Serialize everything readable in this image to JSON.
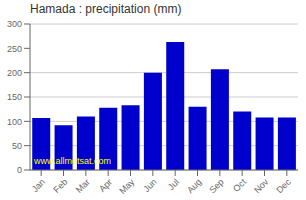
{
  "chart_data": {
    "type": "bar",
    "title": "Hamada : precipitation (mm)",
    "categories": [
      "Jan",
      "Feb",
      "Mar",
      "Apr",
      "May",
      "Jun",
      "Jul",
      "Aug",
      "Sep",
      "Oct",
      "Nov",
      "Dec"
    ],
    "values": [
      107,
      92,
      110,
      128,
      133,
      200,
      263,
      130,
      207,
      120,
      108,
      108
    ],
    "color": "#0000cc",
    "ylim": [
      0,
      300
    ],
    "yticks": [
      0,
      50,
      100,
      150,
      200,
      250,
      300
    ],
    "grid": true,
    "annotation": "www.allmetsat.com"
  }
}
